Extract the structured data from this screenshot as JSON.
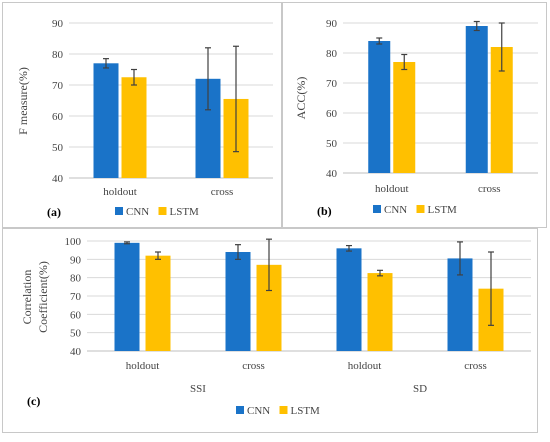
{
  "colors": {
    "cnn": "#1a73c8",
    "lstm": "#ffc000",
    "grid": "#d9d9d9",
    "axis": "#bfbfbf",
    "error": "#404040"
  },
  "chart_data": [
    {
      "panel": "(a)",
      "type": "bar",
      "title": "",
      "ylabel": "F measure(%)",
      "ylim": [
        40,
        90
      ],
      "yticks": [
        "40",
        "50",
        "60",
        "70",
        "80",
        "90"
      ],
      "grid": true,
      "legend": "bottom",
      "categories": [
        "holdout",
        "cross"
      ],
      "group_labels": [],
      "series": [
        {
          "name": "CNN",
          "values": [
            77,
            72
          ],
          "errors": [
            1.5,
            10
          ]
        },
        {
          "name": "LSTM",
          "values": [
            72.5,
            65.5
          ],
          "errors": [
            2.5,
            17
          ]
        }
      ]
    },
    {
      "panel": "(b)",
      "type": "bar",
      "title": "",
      "ylabel": "ACC(%)",
      "ylim": [
        40,
        90
      ],
      "yticks": [
        "40",
        "50",
        "60",
        "70",
        "80",
        "90"
      ],
      "grid": true,
      "legend": "bottom",
      "categories": [
        "holdout",
        "cross"
      ],
      "group_labels": [],
      "series": [
        {
          "name": "CNN",
          "values": [
            84,
            89
          ],
          "errors": [
            1,
            1.5
          ]
        },
        {
          "name": "LSTM",
          "values": [
            77,
            82
          ],
          "errors": [
            2.5,
            8
          ]
        }
      ]
    },
    {
      "panel": "(c)",
      "type": "bar",
      "title": "",
      "ylabel": "Correlation Coefficient(%)",
      "ylim": [
        40,
        100
      ],
      "yticks": [
        "40",
        "50",
        "60",
        "70",
        "80",
        "90",
        "100"
      ],
      "grid": true,
      "legend": "bottom",
      "categories": [
        "holdout",
        "cross",
        "holdout",
        "cross"
      ],
      "group_labels": [
        "SSI",
        "SD"
      ],
      "series": [
        {
          "name": "CNN",
          "values": [
            99,
            94,
            96,
            90.5
          ],
          "errors": [
            0.5,
            4,
            1.5,
            9
          ]
        },
        {
          "name": "LSTM",
          "values": [
            92,
            87,
            82.5,
            74
          ],
          "errors": [
            2,
            14,
            1.5,
            20
          ]
        }
      ]
    }
  ]
}
